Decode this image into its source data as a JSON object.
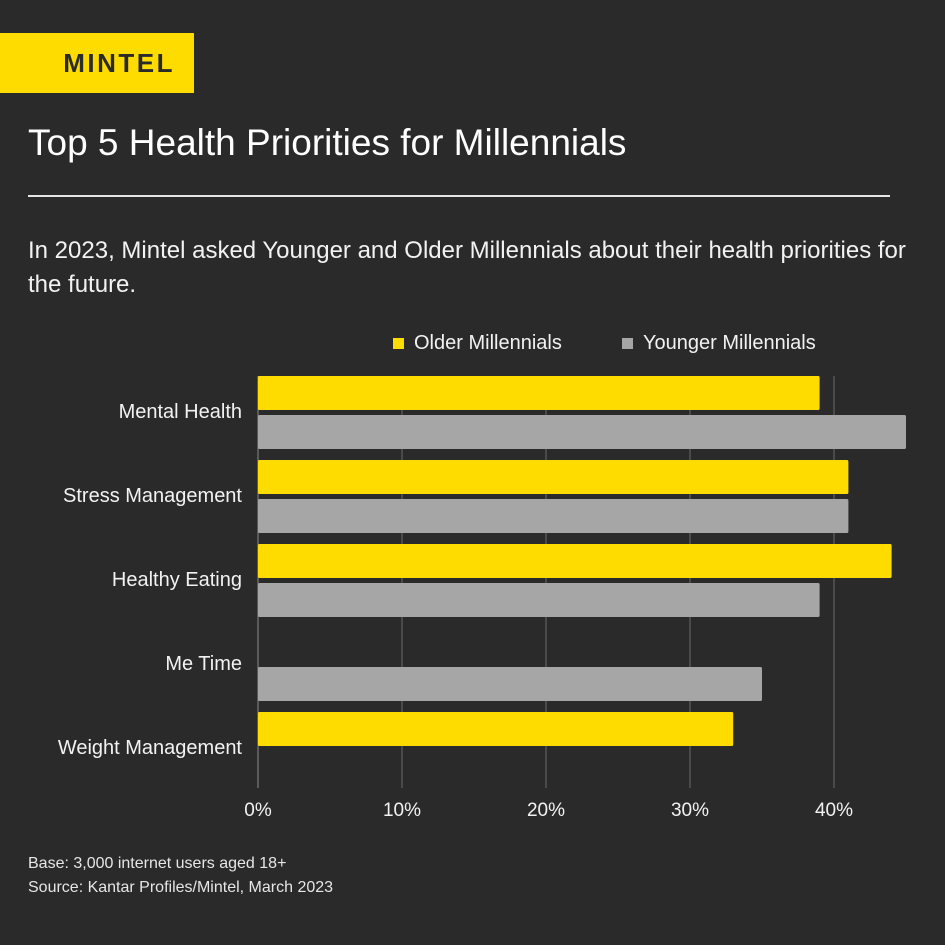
{
  "brand": {
    "logo_text": "MINTEL",
    "accent": "#ffdc00"
  },
  "header": {
    "title": "Top 5 Health Priorities for Millennials",
    "subtitle": "In 2023, Mintel asked Younger and Older Millennials about their health priorities for the future."
  },
  "footer": {
    "base": "Base: 3,000 internet users aged 18+",
    "source": "Source: Kantar Profiles/Mintel, March 2023"
  },
  "chart_data": {
    "type": "bar",
    "orientation": "horizontal",
    "title": "Top 5 Health Priorities for Millennials",
    "xlabel": "",
    "ylabel": "",
    "categories": [
      "Mental Health",
      "Stress Management",
      "Healthy Eating",
      "Me Time",
      "Weight Management"
    ],
    "series": [
      {
        "name": "Older Millennials",
        "color": "#ffdc00",
        "values": [
          39,
          41,
          44,
          null,
          33
        ]
      },
      {
        "name": "Younger Millennials",
        "color": "#a6a6a6",
        "values": [
          45,
          41,
          39,
          35,
          null
        ]
      }
    ],
    "xlim": [
      0,
      45
    ],
    "xticks": [
      0,
      10,
      20,
      30,
      40
    ],
    "xtick_labels": [
      "0%",
      "10%",
      "20%",
      "30%",
      "40%"
    ],
    "grid": true,
    "legend_position": "top-right"
  }
}
